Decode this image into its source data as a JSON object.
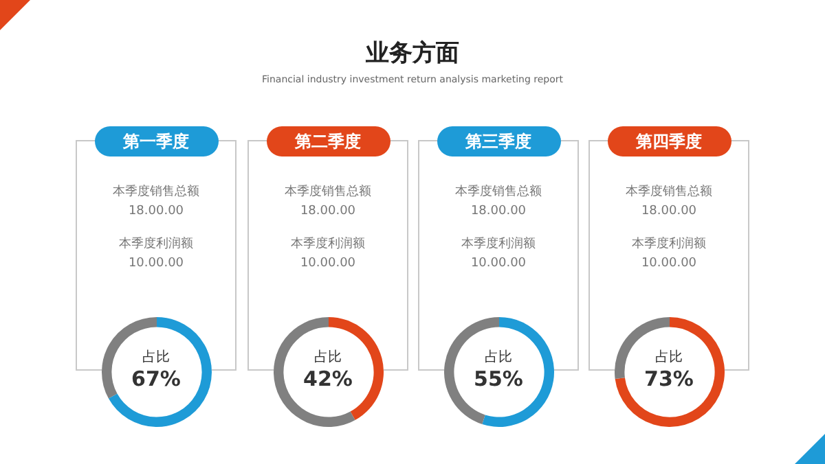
{
  "chart_data": [
    {
      "type": "other",
      "title": "业务方面",
      "subtitle": "Financial industry investment return analysis marketing report"
    },
    {
      "type": "donut",
      "title": "第一季度",
      "categories": [
        null,
        null
      ],
      "values": [
        67,
        33
      ],
      "colors": [
        "#1e9bd7",
        "#808080"
      ],
      "annotations": [
        "本季度销售总额",
        "18.00.00",
        "本季度利润额",
        "10.00.00",
        "占比",
        "67%"
      ]
    },
    {
      "type": "donut",
      "title": "第二季度",
      "categories": [
        null,
        null
      ],
      "values": [
        42,
        58
      ],
      "colors": [
        "#e2461a",
        "#808080"
      ],
      "annotations": [
        "本季度销售总额",
        "18.00.00",
        "本季度利润额",
        "10.00.00",
        "占比",
        "42%"
      ]
    },
    {
      "type": "donut",
      "title": "第三季度",
      "categories": [
        null,
        null
      ],
      "values": [
        55,
        45
      ],
      "colors": [
        "#1e9bd7",
        "#808080"
      ],
      "annotations": [
        "本季度销售总额",
        "18.00.00",
        "本季度利润额",
        "10.00.00",
        "占比",
        "55%"
      ]
    },
    {
      "type": "donut",
      "title": "第四季度",
      "categories": [
        null,
        null
      ],
      "values": [
        73,
        27
      ],
      "colors": [
        "#e2461a",
        "#808080"
      ],
      "annotations": [
        "本季度销售总额",
        "18.00.00",
        "本季度利润额",
        "10.00.00",
        "占比",
        "73%"
      ]
    }
  ]
}
